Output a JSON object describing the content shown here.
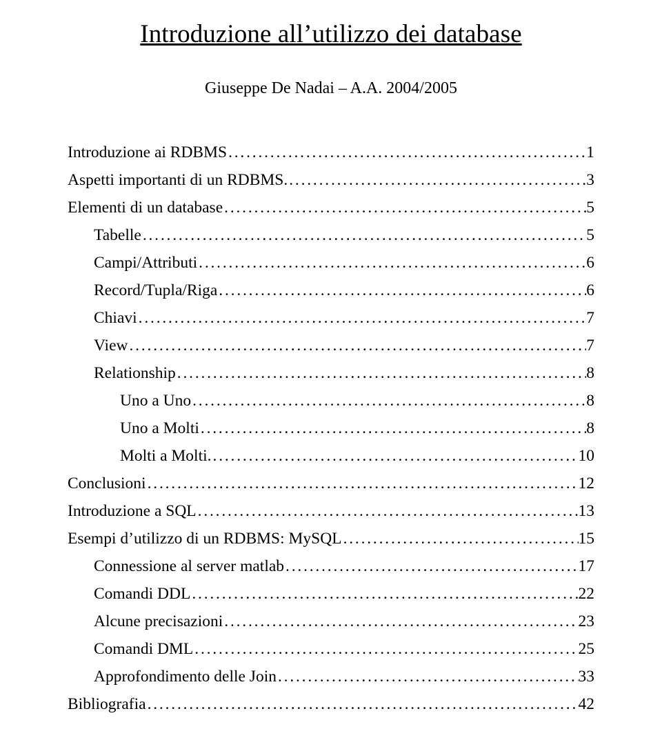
{
  "title": "Introduzione all’utilizzo dei database",
  "author": "Giuseppe De Nadai – A.A. 2004/2005",
  "toc": [
    {
      "label": "Introduzione ai RDBMS",
      "page": "1",
      "indent": 0
    },
    {
      "label": "Aspetti importanti di un RDBMS.",
      "page": "3",
      "indent": 0
    },
    {
      "label": "Elementi di un database",
      "page": "5",
      "indent": 0
    },
    {
      "label": "Tabelle",
      "page": "5",
      "indent": 1
    },
    {
      "label": "Campi/Attributi",
      "page": "6",
      "indent": 1
    },
    {
      "label": "Record/Tupla/Riga",
      "page": "6",
      "indent": 1
    },
    {
      "label": "Chiavi",
      "page": "7",
      "indent": 1
    },
    {
      "label": "View",
      "page": "7",
      "indent": 1
    },
    {
      "label": "Relationship",
      "page": "8",
      "indent": 1
    },
    {
      "label": "Uno a Uno",
      "page": "8",
      "indent": 2
    },
    {
      "label": "Uno a Molti",
      "page": "8",
      "indent": 2
    },
    {
      "label": "Molti a Molti.",
      "page": "10",
      "indent": 2
    },
    {
      "label": "Conclusioni",
      "page": "12",
      "indent": 0
    },
    {
      "label": "Introduzione a SQL",
      "page": "13",
      "indent": 0
    },
    {
      "label": "Esempi d’utilizzo di un RDBMS: MySQL",
      "page": "15",
      "indent": 0
    },
    {
      "label": "Connessione al server matlab",
      "page": "17",
      "indent": 1
    },
    {
      "label": "Comandi DDL",
      "page": "22",
      "indent": 1
    },
    {
      "label": "Alcune  precisazioni",
      "page": "23",
      "indent": 1
    },
    {
      "label": "Comandi DML",
      "page": "25",
      "indent": 1
    },
    {
      "label": "Approfondimento delle Join",
      "page": "33",
      "indent": 1
    },
    {
      "label": "Bibliografia",
      "page": "42",
      "indent": 0
    }
  ]
}
